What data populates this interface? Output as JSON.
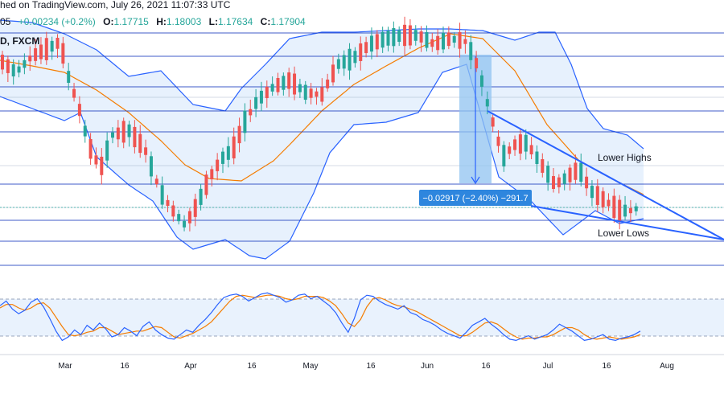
{
  "header": {
    "line1": "hed on TradingView.com, July 26, 2021 11:07:33 UTC",
    "line2_symbol": "D, FXCM",
    "line3_prefix": "05",
    "line3_change": "+0.00234 (+0.2%)",
    "ohlc": {
      "o": "1.17715",
      "h": "1.18003",
      "l": "1.17634",
      "c": "1.17904"
    }
  },
  "annotations": {
    "lower_highs": "Lower Highs",
    "lower_lows": "Lower Lows",
    "measure": "−0.02917 (−2.40%) −291.7"
  },
  "colors": {
    "up": "#26a69a",
    "down": "#ef5350",
    "band": "#2962ff",
    "ma": "#f57c00",
    "band_fill": "#e3effd",
    "hline": "#1e3fbf",
    "trend": "#2962ff",
    "stoch_k": "#2962ff",
    "stoch_d": "#f57c00",
    "measure_fill": "#90c3f0",
    "label_bg": "#2e86de"
  },
  "chart_data": {
    "type": "candlestick",
    "symbol": "FXCM",
    "x_tick_labels": [
      "Mar",
      "16",
      "Apr",
      "16",
      "May",
      "16",
      "Jun",
      "16",
      "Jul",
      "16",
      "Aug"
    ],
    "indicators": [
      "Bollinger Bands",
      "Moving Average",
      "Stochastic"
    ],
    "horizontal_levels_count": 8,
    "stochastic_levels": [
      80,
      20
    ],
    "measure": {
      "price_change": -0.02917,
      "percent": -2.4,
      "pips": -291.7
    },
    "stochastic_k": [
      72,
      80,
      66,
      58,
      64,
      78,
      84,
      70,
      50,
      28,
      12,
      18,
      30,
      22,
      38,
      30,
      42,
      32,
      18,
      22,
      34,
      28,
      20,
      36,
      44,
      30,
      22,
      16,
      14,
      22,
      30,
      26,
      38,
      48,
      60,
      74,
      86,
      90,
      92,
      88,
      80,
      86,
      92,
      94,
      90,
      86,
      78,
      82,
      90,
      92,
      84,
      88,
      80,
      72,
      60,
      42,
      26,
      50,
      82,
      90,
      88,
      80,
      74,
      70,
      66,
      72,
      60,
      56,
      48,
      44,
      38,
      30,
      24,
      20,
      16,
      26,
      38,
      44,
      50,
      40,
      32,
      22,
      14,
      12,
      16,
      20,
      14,
      18,
      22,
      30,
      40,
      34,
      28,
      20,
      12,
      14,
      18,
      22,
      14,
      12,
      16,
      18,
      22,
      28
    ],
    "stochastic_d": [
      68,
      74,
      74,
      68,
      64,
      68,
      75,
      77,
      68,
      52,
      36,
      22,
      20,
      22,
      26,
      28,
      34,
      34,
      28,
      22,
      24,
      26,
      28,
      28,
      32,
      36,
      34,
      26,
      18,
      16,
      20,
      24,
      30,
      36,
      44,
      56,
      68,
      80,
      88,
      90,
      88,
      86,
      88,
      90,
      90,
      88,
      84,
      82,
      84,
      88,
      88,
      88,
      86,
      80,
      72,
      58,
      42,
      36,
      48,
      70,
      84,
      86,
      82,
      76,
      72,
      70,
      66,
      62,
      56,
      50,
      44,
      38,
      32,
      26,
      20,
      20,
      26,
      34,
      42,
      44,
      40,
      32,
      24,
      18,
      14,
      16,
      16,
      18,
      18,
      22,
      28,
      34,
      34,
      30,
      22,
      16,
      14,
      16,
      18,
      16,
      14,
      16,
      18,
      22
    ]
  }
}
